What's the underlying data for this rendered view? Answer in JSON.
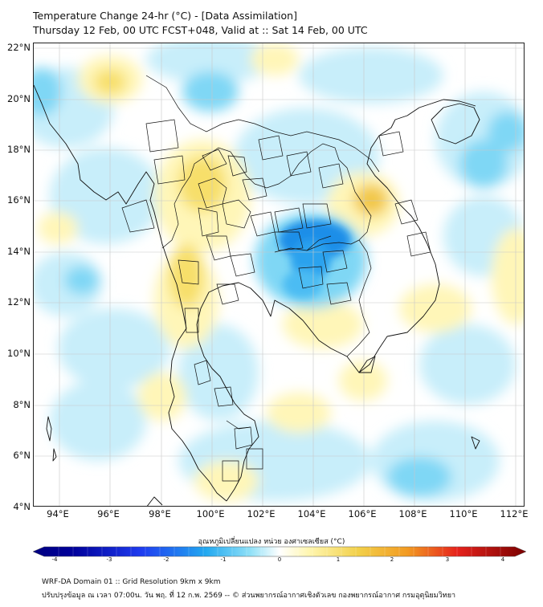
{
  "header": {
    "title": "Temperature Change 24-hr (°C) - [Data Assimilation]",
    "subtitle": "Thursday 12 Feb, 00 UTC FCST+048, Valid at :: Sat 14 Feb, 00 UTC"
  },
  "axes": {
    "lat_labels": [
      "22°N",
      "20°N",
      "18°N",
      "16°N",
      "14°N",
      "12°N",
      "10°N",
      "8°N",
      "6°N",
      "4°N"
    ],
    "lon_labels": [
      "94°E",
      "96°E",
      "98°E",
      "100°E",
      "102°E",
      "104°E",
      "106°E",
      "108°E",
      "110°E",
      "112°E"
    ]
  },
  "colorbar": {
    "label": "อุณหภูมิเปลี่ยนแปลง หน่วย องศาเซลเซียส (°C)",
    "ticks": [
      "-4",
      "-3",
      "-2",
      "-1",
      "0",
      "1",
      "2",
      "3",
      "4"
    ],
    "min": -4,
    "max": 4
  },
  "footer": {
    "line1": "WRF-DA Domain 01 :: Grid Resolution 9km x 9km",
    "line2": "ปรับปรุงข้อมูล ณ เวลา 07:00น. วัน พฤ. ที่ 12 ก.พ. 2569 -- © ส่วนพยากรณ์อากาศเชิงตัวเลข กองพยากรณ์อากาศ กรมอุตุนิยมวิทยา"
  },
  "colors": {
    "cold_strong": "#1f8ee8",
    "cold": "#7fd7f5",
    "cold_light": "#c8eefa",
    "warm_light": "#fff6b8",
    "warm": "#f7df6a",
    "warm_strong": "#f2c84a",
    "coast": "#111111",
    "grid": "#c8c8c8"
  }
}
